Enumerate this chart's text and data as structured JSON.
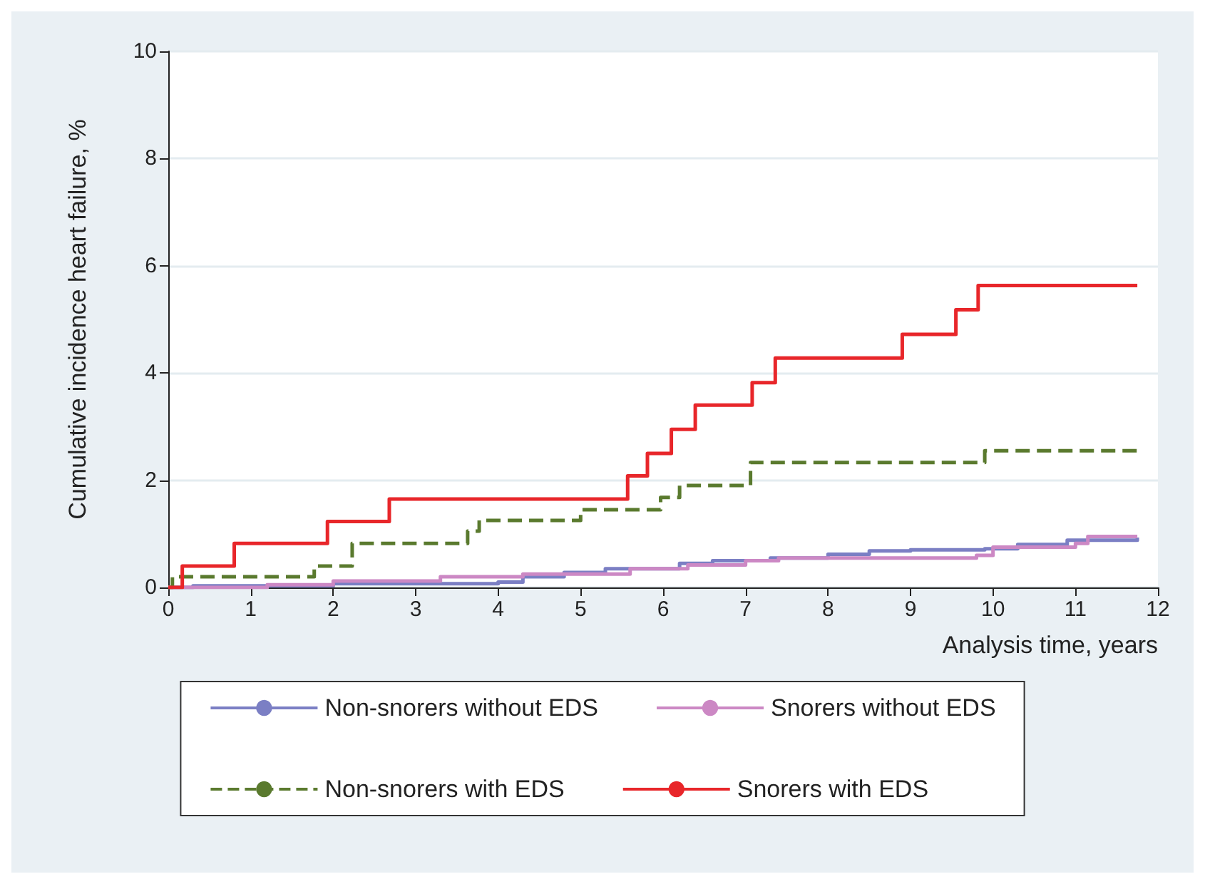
{
  "chart_data": {
    "type": "step",
    "xlabel": "Analysis time, years",
    "ylabel": "Cumulative incidence heart failure, %",
    "xlim": [
      0,
      12
    ],
    "xticks": [
      0,
      1,
      2,
      3,
      4,
      5,
      6,
      7,
      8,
      9,
      10,
      11,
      12
    ],
    "ylim": [
      0,
      10
    ],
    "yticks": [
      0,
      2,
      4,
      6,
      8,
      10
    ],
    "grid": "y",
    "legend": "bottom",
    "series": [
      {
        "name": "Non-snorers without EDS",
        "color": "#7b7fc4",
        "line_style": "solid",
        "x": [
          0,
          0.3,
          2,
          4,
          4.3,
          4.8,
          5.3,
          6.2,
          6.6,
          7.3,
          8,
          8.5,
          9,
          9.9,
          10.3,
          10.9,
          11.75
        ],
        "values": [
          0,
          0.03,
          0.07,
          0.1,
          0.2,
          0.28,
          0.35,
          0.45,
          0.5,
          0.55,
          0.62,
          0.68,
          0.7,
          0.72,
          0.8,
          0.88,
          0.93
        ]
      },
      {
        "name": "Snorers without EDS",
        "color": "#cc88c4",
        "line_style": "solid",
        "x": [
          0,
          1.2,
          2,
          3.3,
          4.3,
          5.6,
          6.3,
          7,
          7.4,
          9.8,
          10,
          11,
          11.15,
          11.75
        ],
        "values": [
          0,
          0.05,
          0.12,
          0.2,
          0.25,
          0.35,
          0.42,
          0.5,
          0.55,
          0.6,
          0.75,
          0.82,
          0.95,
          0.95
        ]
      },
      {
        "name": "Non-snorers with EDS",
        "color": "#5a7a2e",
        "line_style": "dashed",
        "x": [
          0,
          0.05,
          1.77,
          2.23,
          3.63,
          3.77,
          5,
          5.97,
          6.2,
          7.06,
          9.9,
          11.75
        ],
        "values": [
          0,
          0.2,
          0.4,
          0.82,
          1.05,
          1.25,
          1.45,
          1.68,
          1.9,
          2.33,
          2.55,
          2.55
        ]
      },
      {
        "name": "Snorers with EDS",
        "color": "#e8262a",
        "line_style": "solid",
        "x": [
          0,
          0.17,
          0.8,
          1.93,
          2.68,
          5.57,
          5.81,
          6.1,
          6.39,
          7.08,
          7.36,
          8.9,
          9.55,
          9.82,
          11.75
        ],
        "values": [
          0,
          0.4,
          0.82,
          1.23,
          1.65,
          2.08,
          2.5,
          2.95,
          3.4,
          3.82,
          4.28,
          4.72,
          5.18,
          5.63,
          5.63
        ]
      }
    ]
  }
}
